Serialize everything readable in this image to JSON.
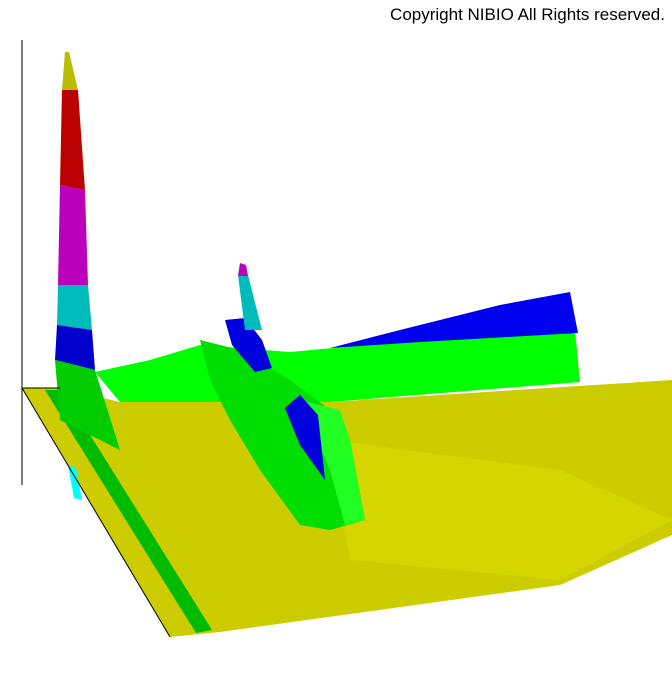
{
  "header": {
    "copyright": "Copyright NIBIO All Rights reserved."
  }
}
